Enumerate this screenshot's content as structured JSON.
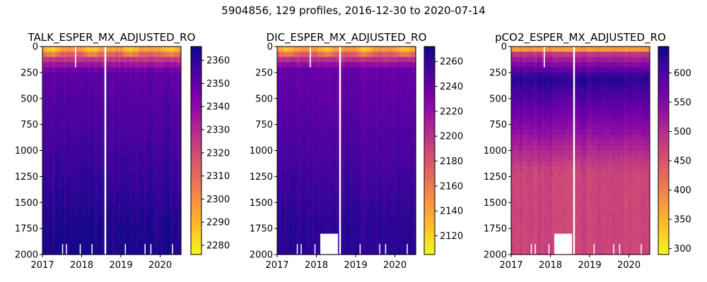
{
  "figure": {
    "title": "5904856, 129 profiles, 2016-12-30 to 2020-07-14"
  },
  "chart_data": [
    {
      "type": "heatmap",
      "title": "TALK_ESPER_MX_ADJUSTED_RO",
      "x_ticks": [
        "2017",
        "2018",
        "2019",
        "2020"
      ],
      "x_tick_values": [
        2017,
        2018,
        2019,
        2020
      ],
      "xlim": [
        2017.0,
        2020.53
      ],
      "y_ticks": [
        0,
        250,
        500,
        750,
        1000,
        1250,
        1500,
        1750,
        2000
      ],
      "ylim": [
        0,
        2000
      ],
      "y_inverted": true,
      "colorbar": {
        "min": 2276,
        "max": 2366,
        "ticks": [
          2280,
          2290,
          2300,
          2310,
          2320,
          2330,
          2340,
          2350,
          2360
        ],
        "colormap": "plasma_r"
      },
      "surface_low": 2278,
      "deep_value": 2363,
      "transition_depth": 250,
      "grid": false
    },
    {
      "type": "heatmap",
      "title": "DIC_ESPER_MX_ADJUSTED_RO",
      "x_ticks": [
        "2017",
        "2018",
        "2019",
        "2020"
      ],
      "x_tick_values": [
        2017,
        2018,
        2019,
        2020
      ],
      "xlim": [
        2017.0,
        2020.53
      ],
      "y_ticks": [
        0,
        250,
        500,
        750,
        1000,
        1250,
        1500,
        1750,
        2000
      ],
      "ylim": [
        0,
        2000
      ],
      "y_inverted": true,
      "colorbar": {
        "min": 2105,
        "max": 2272,
        "ticks": [
          2120,
          2140,
          2160,
          2180,
          2200,
          2220,
          2240,
          2260
        ],
        "colormap": "plasma_r"
      },
      "surface_low": 2110,
      "deep_value": 2262,
      "transition_depth": 220,
      "grid": false
    },
    {
      "type": "heatmap",
      "title": "pCO2_ESPER_MX_ADJUSTED_RO",
      "x_ticks": [
        "2017",
        "2018",
        "2019",
        "2020"
      ],
      "x_tick_values": [
        2017,
        2018,
        2019,
        2020
      ],
      "xlim": [
        2017.0,
        2020.53
      ],
      "y_ticks": [
        0,
        250,
        500,
        750,
        1000,
        1250,
        1500,
        1750,
        2000
      ],
      "ylim": [
        0,
        2000
      ],
      "y_inverted": true,
      "colorbar": {
        "min": 290,
        "max": 645,
        "ticks": [
          300,
          350,
          400,
          450,
          500,
          550,
          600
        ],
        "colormap": "plasma_r"
      },
      "surface_low": 300,
      "peak_value": 630,
      "peak_depth": 300,
      "deep_value": 470,
      "grid": false
    }
  ],
  "colors": {
    "missing_data": "#ffffff",
    "axis": "#000000"
  }
}
